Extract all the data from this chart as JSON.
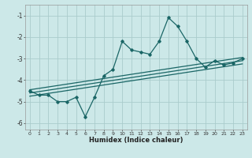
{
  "xlabel": "Humidex (Indice chaleur)",
  "bg_color": "#cce8e8",
  "grid_color": "#aacccc",
  "line_color": "#1a6666",
  "xlim": [
    -0.5,
    23.5
  ],
  "ylim": [
    -6.3,
    -0.5
  ],
  "yticks": [
    -6,
    -5,
    -4,
    -3,
    -2,
    -1
  ],
  "xticks": [
    0,
    1,
    2,
    3,
    4,
    5,
    6,
    7,
    8,
    9,
    10,
    11,
    12,
    13,
    14,
    15,
    16,
    17,
    18,
    19,
    20,
    21,
    22,
    23
  ],
  "main_x": [
    0,
    1,
    2,
    3,
    4,
    5,
    6,
    7,
    8,
    9,
    10,
    11,
    12,
    13,
    14,
    15,
    16,
    17,
    18,
    19,
    20,
    21,
    22,
    23
  ],
  "main_y": [
    -4.5,
    -4.7,
    -4.7,
    -5.0,
    -5.0,
    -4.8,
    -5.7,
    -4.8,
    -3.8,
    -3.5,
    -2.2,
    -2.6,
    -2.7,
    -2.8,
    -2.2,
    -1.1,
    -1.5,
    -2.2,
    -3.0,
    -3.4,
    -3.1,
    -3.3,
    -3.2,
    -3.0
  ],
  "trend1_x": [
    0,
    23
  ],
  "trend1_y": [
    -4.45,
    -2.95
  ],
  "trend2_x": [
    0,
    23
  ],
  "trend2_y": [
    -4.6,
    -3.1
  ],
  "trend3_x": [
    0,
    23
  ],
  "trend3_y": [
    -4.75,
    -3.25
  ]
}
